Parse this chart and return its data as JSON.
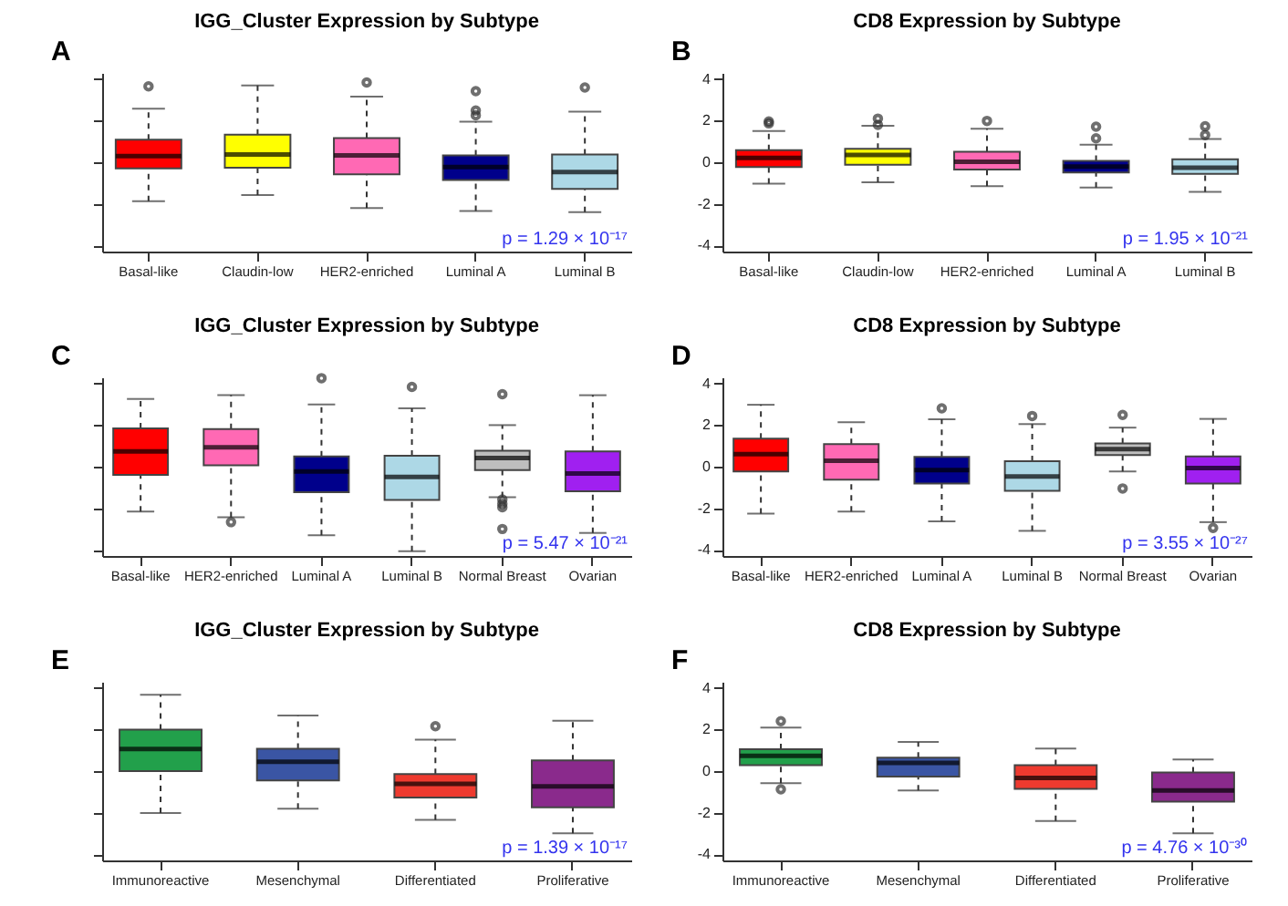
{
  "chart_data": [
    {
      "type": "box",
      "title": "IGG_Cluster Expression by Subtype",
      "annotations": [
        "A",
        "p = 1.29 × 10⁻¹⁷"
      ],
      "categories": [
        "Basal-like",
        "Claudin-low",
        "HER2-enriched",
        "Luminal A",
        "Luminal B"
      ],
      "colors": [
        "#ff0000",
        "#ffff00",
        "#ff69b4",
        "#00008b",
        "#add8e6"
      ],
      "boxes": [
        {
          "low": -1.88,
          "q1": -0.3,
          "median": 0.3,
          "q3": 1.09,
          "high": 2.58,
          "outliers": [
            3.65
          ]
        },
        {
          "low": -1.58,
          "q1": -0.26,
          "median": 0.37,
          "q3": 1.33,
          "high": 3.7
        },
        {
          "low": -2.21,
          "q1": -0.58,
          "median": 0.33,
          "q3": 1.16,
          "high": 3.16,
          "outliers": [
            3.84
          ]
        },
        {
          "low": -2.35,
          "q1": -0.86,
          "median": -0.23,
          "q3": 0.33,
          "high": 1.95,
          "outliers": [
            3.42,
            2.26,
            2.49
          ]
        },
        {
          "low": -2.4,
          "q1": -1.28,
          "median": -0.47,
          "q3": 0.37,
          "high": 2.44,
          "outliers": [
            3.6
          ]
        }
      ],
      "ylim": [
        -4.3,
        4.3
      ],
      "yticks": [
        {
          "value": -4,
          "label": null
        },
        {
          "value": -2,
          "label": null
        },
        {
          "value": 0,
          "label": null
        },
        {
          "value": 2,
          "label": null
        },
        {
          "value": 4,
          "label": null
        }
      ],
      "tick_labels": "x"
    },
    {
      "type": "box",
      "title": "CD8 Expression by Subtype",
      "annotations": [
        "B",
        "p = 1.95 × 10⁻²¹"
      ],
      "categories": [
        "Basal-like",
        "Claudin-low",
        "HER2-enriched",
        "Luminal A",
        "Luminal B"
      ],
      "colors": [
        "#ff0000",
        "#ffff00",
        "#ff69b4",
        "#00008b",
        "#add8e6"
      ],
      "boxes": [
        {
          "low": -1.03,
          "q1": -0.23,
          "median": 0.21,
          "q3": 0.58,
          "high": 1.5,
          "outliers": [
            1.96,
            1.87
          ]
        },
        {
          "low": -0.96,
          "q1": -0.12,
          "median": 0.35,
          "q3": 0.65,
          "high": 1.75,
          "outliers": [
            2.1,
            1.8
          ]
        },
        {
          "low": -1.15,
          "q1": -0.35,
          "median": 0.02,
          "q3": 0.51,
          "high": 1.61,
          "outliers": [
            1.99
          ]
        },
        {
          "low": -1.22,
          "q1": -0.49,
          "median": -0.21,
          "q3": 0.07,
          "high": 0.84,
          "outliers": [
            1.71,
            1.15
          ]
        },
        {
          "low": -1.43,
          "q1": -0.56,
          "median": -0.26,
          "q3": 0.14,
          "high": 1.12,
          "outliers": [
            1.73,
            1.31
          ]
        }
      ],
      "ylim": [
        -4.3,
        4.3
      ],
      "yticks": [
        -4,
        -2,
        0,
        2,
        4
      ]
    },
    {
      "type": "box",
      "title": "IGG_Cluster Expression by Subtype",
      "annotations": [
        "C",
        "p = 5.47 × 10⁻²¹"
      ],
      "categories": [
        "Basal-like",
        "HER2-enriched",
        "Luminal A",
        "Luminal B",
        "Normal Breast",
        "Ovarian"
      ],
      "colors": [
        "#ff0000",
        "#ff69b4",
        "#00008b",
        "#add8e6",
        "#bebebe",
        "#a020f0"
      ],
      "boxes": [
        {
          "low": -2.16,
          "q1": -0.4,
          "median": 0.74,
          "q3": 1.84,
          "high": 3.26
        },
        {
          "low": -2.44,
          "q1": 0.07,
          "median": 0.93,
          "q3": 1.81,
          "high": 3.44,
          "outliers": [
            -2.67
          ]
        },
        {
          "low": -3.3,
          "q1": -1.23,
          "median": -0.23,
          "q3": 0.49,
          "high": 3.0,
          "outliers": [
            4.26
          ]
        },
        {
          "low": -4.07,
          "q1": -1.6,
          "median": -0.49,
          "q3": 0.53,
          "high": 2.81,
          "outliers": [
            3.84
          ]
        },
        {
          "low": -1.47,
          "q1": -0.16,
          "median": 0.42,
          "q3": 0.77,
          "high": 2.0,
          "outliers": [
            3.49,
            -1.58,
            -1.79,
            -1.95,
            -3.0
          ]
        },
        {
          "low": -3.19,
          "q1": -1.19,
          "median": -0.33,
          "q3": 0.74,
          "high": 3.44
        }
      ],
      "ylim": [
        -4.3,
        4.3
      ],
      "yticks": [
        {
          "value": -4,
          "label": null
        },
        {
          "value": -2,
          "label": null
        },
        {
          "value": 0,
          "label": null
        },
        {
          "value": 2,
          "label": null
        },
        {
          "value": 4,
          "label": null
        }
      ],
      "tick_labels": "x"
    },
    {
      "type": "box",
      "title": "CD8 Expression by Subtype",
      "annotations": [
        "D",
        "p = 3.55 × 10⁻²⁷"
      ],
      "categories": [
        "Basal-like",
        "HER2-enriched",
        "Luminal A",
        "Luminal B",
        "Normal Breast",
        "Ovarian"
      ],
      "colors": [
        "#ff0000",
        "#ff69b4",
        "#00008b",
        "#add8e6",
        "#bebebe",
        "#a020f0"
      ],
      "boxes": [
        {
          "low": -2.26,
          "q1": -0.23,
          "median": 0.6,
          "q3": 1.35,
          "high": 2.98
        },
        {
          "low": -2.16,
          "q1": -0.63,
          "median": 0.28,
          "q3": 1.09,
          "high": 2.14
        },
        {
          "low": -2.63,
          "q1": -0.81,
          "median": -0.16,
          "q3": 0.47,
          "high": 2.28,
          "outliers": [
            2.81
          ]
        },
        {
          "low": -3.09,
          "q1": -1.16,
          "median": -0.47,
          "q3": 0.26,
          "high": 2.05,
          "outliers": [
            2.44
          ]
        },
        {
          "low": -0.23,
          "q1": 0.56,
          "median": 0.84,
          "q3": 1.12,
          "high": 1.88,
          "outliers": [
            2.49,
            -1.05
          ]
        },
        {
          "low": -2.67,
          "q1": -0.81,
          "median": -0.07,
          "q3": 0.49,
          "high": 2.3,
          "outliers": [
            -2.95
          ]
        }
      ],
      "ylim": [
        -4.3,
        4.3
      ],
      "yticks": [
        -4,
        -2,
        0,
        2,
        4
      ]
    },
    {
      "type": "box",
      "title": "IGG_Cluster Expression by Subtype",
      "annotations": [
        "E",
        "p = 1.39 × 10⁻¹⁷"
      ],
      "categories": [
        "Immunoreactive",
        "Mesenchymal",
        "Differentiated",
        "Proliferative"
      ],
      "colors": [
        "#22a04b",
        "#3a55a4",
        "#ee3a2f",
        "#8a2a8c"
      ],
      "boxes": [
        {
          "low": -2.02,
          "q1": 0.0,
          "median": 1.06,
          "q3": 2.0,
          "high": 3.67
        },
        {
          "low": -1.81,
          "q1": -0.45,
          "median": 0.45,
          "q3": 1.08,
          "high": 2.68
        },
        {
          "low": -2.35,
          "q1": -1.27,
          "median": -0.61,
          "q3": -0.14,
          "high": 1.51,
          "outliers": [
            2.16
          ]
        },
        {
          "low": -2.99,
          "q1": -1.74,
          "median": -0.73,
          "q3": 0.52,
          "high": 2.42
        }
      ],
      "ylim": [
        -4.3,
        4.3
      ],
      "yticks": [
        {
          "value": -4,
          "label": null
        },
        {
          "value": -2,
          "label": null
        },
        {
          "value": 0,
          "label": null
        },
        {
          "value": 2,
          "label": null
        },
        {
          "value": 4,
          "label": null
        }
      ],
      "tick_labels": "x"
    },
    {
      "type": "box",
      "title": "CD8 Expression by Subtype",
      "annotations": [
        "F",
        "p = 4.76 × 10⁻³⁰"
      ],
      "categories": [
        "Immunoreactive",
        "Mesenchymal",
        "Differentiated",
        "Proliferative"
      ],
      "colors": [
        "#22a04b",
        "#3a55a4",
        "#ee3a2f",
        "#8a2a8c"
      ],
      "boxes": [
        {
          "low": -0.58,
          "q1": 0.28,
          "median": 0.74,
          "q3": 1.05,
          "high": 2.09,
          "outliers": [
            2.4,
            -0.88
          ]
        },
        {
          "low": -0.93,
          "q1": -0.26,
          "median": 0.4,
          "q3": 0.65,
          "high": 1.4
        },
        {
          "low": -2.4,
          "q1": -0.86,
          "median": -0.33,
          "q3": 0.28,
          "high": 1.09
        },
        {
          "low": -3.0,
          "q1": -1.47,
          "median": -0.93,
          "q3": -0.07,
          "high": 0.56
        }
      ],
      "ylim": [
        -4.3,
        4.3
      ],
      "yticks": [
        -4,
        -2,
        0,
        2,
        4
      ]
    }
  ]
}
